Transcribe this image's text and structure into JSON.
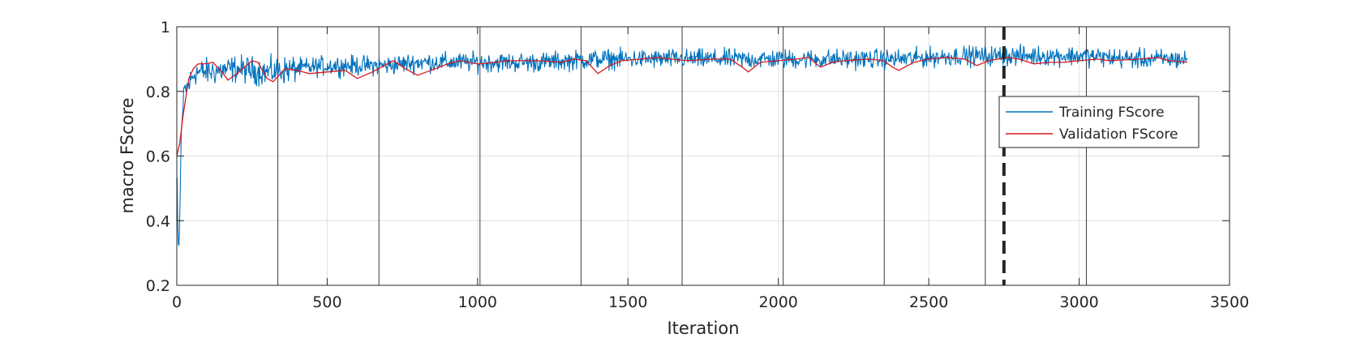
{
  "chart_data": {
    "type": "line",
    "title": "",
    "xlabel": "Iteration",
    "ylabel": "macro FScore",
    "xlim": [
      0,
      3500
    ],
    "ylim": [
      0.2,
      1
    ],
    "xticks": [
      0,
      500,
      1000,
      1500,
      2000,
      2500,
      3000,
      3500
    ],
    "xtick_labels": [
      "0",
      "500",
      "1000",
      "1500",
      "2000",
      "2500",
      "3000",
      "3500"
    ],
    "yticks": [
      0.2,
      0.4,
      0.6,
      0.8,
      1
    ],
    "ytick_labels": [
      "0.2",
      "0.4",
      "0.6",
      "0.8",
      "1"
    ],
    "grid": true,
    "legend_position": "right",
    "epoch_lines": [
      336,
      672,
      1008,
      1344,
      1680,
      2016,
      2352,
      2688,
      3024
    ],
    "final_iteration_line": 2750,
    "series": [
      {
        "name": "Training FScore",
        "color": "#0072BD",
        "x_range": [
          1,
          3360
        ],
        "approx_points": [
          [
            0,
            0.6
          ],
          [
            4,
            0.33
          ],
          [
            8,
            0.32
          ],
          [
            15,
            0.68
          ],
          [
            25,
            0.8
          ],
          [
            40,
            0.82
          ],
          [
            60,
            0.86
          ],
          [
            100,
            0.86
          ],
          [
            200,
            0.87
          ],
          [
            300,
            0.86
          ],
          [
            400,
            0.87
          ],
          [
            500,
            0.88
          ],
          [
            600,
            0.88
          ],
          [
            700,
            0.88
          ],
          [
            800,
            0.89
          ],
          [
            900,
            0.89
          ],
          [
            1000,
            0.89
          ],
          [
            1200,
            0.89
          ],
          [
            1400,
            0.9
          ],
          [
            1600,
            0.9
          ],
          [
            1800,
            0.9
          ],
          [
            2000,
            0.9
          ],
          [
            2200,
            0.9
          ],
          [
            2400,
            0.9
          ],
          [
            2600,
            0.91
          ],
          [
            2800,
            0.91
          ],
          [
            3000,
            0.91
          ],
          [
            3200,
            0.9
          ],
          [
            3360,
            0.9
          ]
        ],
        "noise_amplitude": 0.045
      },
      {
        "name": "Validation FScore",
        "color": "#D9181E",
        "points": [
          [
            0,
            0.6
          ],
          [
            10,
            0.64
          ],
          [
            20,
            0.72
          ],
          [
            30,
            0.78
          ],
          [
            40,
            0.84
          ],
          [
            55,
            0.87
          ],
          [
            70,
            0.885
          ],
          [
            100,
            0.886
          ],
          [
            120,
            0.89
          ],
          [
            150,
            0.86
          ],
          [
            170,
            0.835
          ],
          [
            200,
            0.855
          ],
          [
            250,
            0.895
          ],
          [
            270,
            0.89
          ],
          [
            300,
            0.84
          ],
          [
            320,
            0.83
          ],
          [
            360,
            0.87
          ],
          [
            400,
            0.865
          ],
          [
            440,
            0.855
          ],
          [
            500,
            0.86
          ],
          [
            560,
            0.865
          ],
          [
            600,
            0.84
          ],
          [
            650,
            0.86
          ],
          [
            690,
            0.88
          ],
          [
            720,
            0.895
          ],
          [
            760,
            0.87
          ],
          [
            800,
            0.85
          ],
          [
            860,
            0.87
          ],
          [
            900,
            0.885
          ],
          [
            940,
            0.895
          ],
          [
            1000,
            0.885
          ],
          [
            1060,
            0.89
          ],
          [
            1100,
            0.895
          ],
          [
            1200,
            0.895
          ],
          [
            1280,
            0.89
          ],
          [
            1320,
            0.9
          ],
          [
            1360,
            0.895
          ],
          [
            1400,
            0.855
          ],
          [
            1440,
            0.88
          ],
          [
            1480,
            0.895
          ],
          [
            1540,
            0.9
          ],
          [
            1600,
            0.905
          ],
          [
            1640,
            0.9
          ],
          [
            1700,
            0.895
          ],
          [
            1780,
            0.9
          ],
          [
            1840,
            0.9
          ],
          [
            1880,
            0.875
          ],
          [
            1900,
            0.86
          ],
          [
            1940,
            0.89
          ],
          [
            2000,
            0.895
          ],
          [
            2060,
            0.9
          ],
          [
            2100,
            0.905
          ],
          [
            2140,
            0.875
          ],
          [
            2180,
            0.89
          ],
          [
            2220,
            0.895
          ],
          [
            2300,
            0.9
          ],
          [
            2350,
            0.895
          ],
          [
            2380,
            0.875
          ],
          [
            2400,
            0.865
          ],
          [
            2450,
            0.89
          ],
          [
            2500,
            0.9
          ],
          [
            2560,
            0.905
          ],
          [
            2620,
            0.9
          ],
          [
            2660,
            0.88
          ],
          [
            2700,
            0.895
          ],
          [
            2760,
            0.905
          ],
          [
            2800,
            0.9
          ],
          [
            2850,
            0.885
          ],
          [
            2900,
            0.89
          ],
          [
            2950,
            0.89
          ],
          [
            3000,
            0.895
          ],
          [
            3060,
            0.9
          ],
          [
            3100,
            0.895
          ],
          [
            3200,
            0.9
          ],
          [
            3260,
            0.905
          ],
          [
            3300,
            0.895
          ],
          [
            3360,
            0.89
          ]
        ]
      }
    ]
  }
}
